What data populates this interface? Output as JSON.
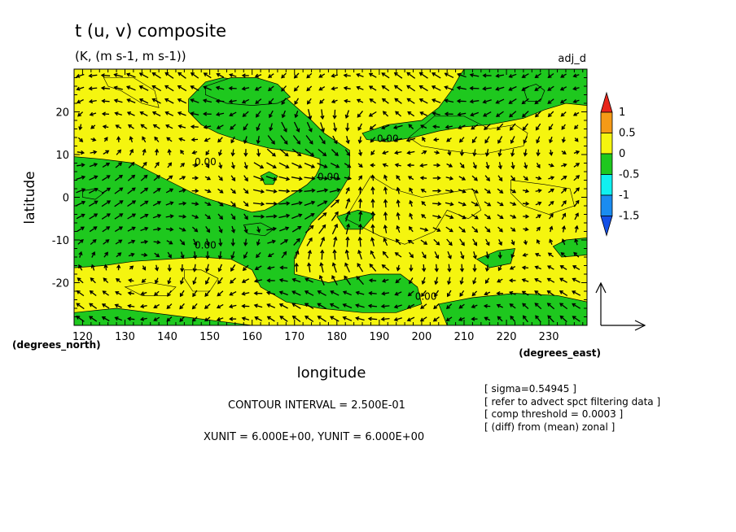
{
  "chart_data": {
    "type": "heatmap",
    "title": "t (u, v) composite",
    "subtitle": "(K, (m s-1, m s-1))",
    "top_right_label": "adj_d",
    "xlabel": "longitude",
    "ylabel": "latitude",
    "x_unit_label": "(degrees_east)",
    "y_unit_label": "(degrees_north)",
    "xlim": [
      118,
      239
    ],
    "ylim": [
      -30,
      30
    ],
    "x_ticks": [
      120,
      130,
      140,
      150,
      160,
      170,
      180,
      190,
      200,
      210,
      220,
      230
    ],
    "y_ticks": [
      20,
      10,
      0,
      -10,
      -20
    ],
    "colorbar": {
      "labels": [
        "1",
        "0.5",
        "0",
        "-0.5",
        "-1",
        "-1.5"
      ],
      "colors": [
        "#e8251a",
        "#f59a16",
        "#f5f50f",
        "#1ec81e",
        "#10f0f0",
        "#1a8cf0",
        "#1450e6"
      ]
    },
    "fill_colors": {
      "positive": "#f5f50f",
      "negative": "#1ec81e"
    },
    "contour_labels": [
      {
        "text": "0.00",
        "lon": 149,
        "lat": 7.5
      },
      {
        "text": "0.00",
        "lon": 192,
        "lat": 13
      },
      {
        "text": "0.00",
        "lon": 178,
        "lat": 4
      },
      {
        "text": "0.00",
        "lon": 149,
        "lat": -12
      },
      {
        "text": "0.00",
        "lon": 201,
        "lat": -24
      }
    ],
    "negative_regions": [
      [
        [
          118,
          9.5
        ],
        [
          124,
          9
        ],
        [
          128,
          8.5
        ],
        [
          132,
          8
        ],
        [
          136,
          6
        ],
        [
          140,
          4
        ],
        [
          146,
          1
        ],
        [
          150,
          -0.5
        ],
        [
          155,
          -2
        ],
        [
          160,
          -3.5
        ],
        [
          163,
          -3
        ],
        [
          166,
          -1.5
        ],
        [
          170,
          1
        ],
        [
          173,
          3
        ],
        [
          175,
          5
        ],
        [
          176,
          7
        ],
        [
          176,
          9
        ],
        [
          171,
          10.5
        ],
        [
          164,
          11.5
        ],
        [
          158,
          13
        ],
        [
          152,
          15
        ],
        [
          148,
          17
        ],
        [
          145,
          20
        ],
        [
          145,
          23
        ],
        [
          147,
          25
        ],
        [
          149,
          27
        ],
        [
          153,
          28
        ],
        [
          160,
          27
        ],
        [
          166,
          25
        ],
        [
          170,
          21.5
        ],
        [
          174,
          18
        ],
        [
          177,
          15
        ],
        [
          180,
          13
        ],
        [
          183,
          11
        ],
        [
          183,
          5
        ],
        [
          180,
          0
        ],
        [
          177,
          -3
        ],
        [
          174,
          -6
        ],
        [
          172,
          -10
        ],
        [
          170,
          -14
        ],
        [
          170,
          -18
        ],
        [
          178,
          -20
        ],
        [
          188,
          -18
        ],
        [
          195,
          -18
        ],
        [
          199,
          -21
        ],
        [
          200,
          -25
        ],
        [
          194,
          -27
        ],
        [
          186,
          -27
        ],
        [
          176,
          -26
        ],
        [
          168,
          -24.5
        ],
        [
          162,
          -21
        ],
        [
          160,
          -17
        ],
        [
          155,
          -14.5
        ],
        [
          148,
          -14
        ],
        [
          140,
          -14.5
        ],
        [
          132,
          -15
        ],
        [
          125,
          -16
        ],
        [
          118,
          -16.5
        ]
      ],
      [
        [
          186,
          15
        ],
        [
          192,
          17
        ],
        [
          200,
          18
        ],
        [
          204,
          21
        ],
        [
          207,
          25
        ],
        [
          209,
          28.5
        ],
        [
          210,
          30
        ],
        [
          239,
          30
        ],
        [
          239,
          21.5
        ],
        [
          234,
          22
        ],
        [
          229,
          20.5
        ],
        [
          224,
          18.5
        ],
        [
          216,
          17
        ],
        [
          210,
          16.5
        ],
        [
          204,
          15.5
        ],
        [
          198,
          14
        ],
        [
          192,
          13
        ],
        [
          187,
          13.5
        ]
      ],
      [
        [
          149,
          26
        ],
        [
          152,
          27
        ],
        [
          155,
          28
        ],
        [
          161,
          28
        ],
        [
          166,
          26.5
        ],
        [
          169,
          23.5
        ],
        [
          166,
          22
        ],
        [
          160,
          21.5
        ],
        [
          154,
          22
        ],
        [
          149,
          24
        ]
      ],
      [
        [
          162,
          5
        ],
        [
          164,
          6
        ],
        [
          166,
          5
        ],
        [
          165,
          3
        ],
        [
          163,
          3
        ]
      ],
      [
        [
          120,
          1.5
        ],
        [
          123,
          2
        ],
        [
          125,
          1
        ],
        [
          123,
          -0.5
        ],
        [
          120,
          0
        ]
      ],
      [
        [
          158,
          -6.5
        ],
        [
          162,
          -6
        ],
        [
          165,
          -7.5
        ],
        [
          163,
          -9
        ],
        [
          159,
          -8.5
        ]
      ],
      [
        [
          180,
          -4.5
        ],
        [
          185,
          -3
        ],
        [
          189,
          -4
        ],
        [
          186,
          -7.5
        ],
        [
          182,
          -7.5
        ]
      ],
      [
        [
          224,
          25.5
        ],
        [
          227,
          26.5
        ],
        [
          229,
          25
        ],
        [
          228,
          22.5
        ],
        [
          225,
          22.5
        ]
      ],
      [
        [
          213,
          -14.5
        ],
        [
          218,
          -12.5
        ],
        [
          222,
          -12
        ],
        [
          221,
          -15.5
        ],
        [
          216,
          -16.5
        ]
      ],
      [
        [
          231,
          -11.5
        ],
        [
          234,
          -10
        ],
        [
          239,
          -9.5
        ],
        [
          239,
          -13.5
        ],
        [
          233,
          -14
        ]
      ],
      [
        [
          118,
          -27
        ],
        [
          128,
          -26
        ],
        [
          140,
          -27.5
        ],
        [
          152,
          -29
        ],
        [
          160,
          -30
        ],
        [
          118,
          -30
        ]
      ],
      [
        [
          204,
          -25
        ],
        [
          212,
          -23.5
        ],
        [
          222,
          -22.5
        ],
        [
          232,
          -23
        ],
        [
          239,
          -24.5
        ],
        [
          239,
          -30
        ],
        [
          206,
          -30
        ]
      ]
    ],
    "outline_contours": [
      [
        [
          197,
          14
        ],
        [
          203,
          19
        ],
        [
          210,
          19
        ],
        [
          216,
          16
        ],
        [
          222,
          17
        ],
        [
          225,
          15
        ],
        [
          224,
          12
        ],
        [
          214,
          10
        ],
        [
          206,
          11
        ],
        [
          200,
          12
        ]
      ],
      [
        [
          130,
          -21
        ],
        [
          136,
          -20
        ],
        [
          142,
          -21
        ],
        [
          140,
          -23
        ],
        [
          134,
          -23
        ]
      ],
      [
        [
          182,
          -5
        ],
        [
          190,
          -9
        ],
        [
          196,
          -11
        ],
        [
          203,
          -8
        ],
        [
          206,
          -3
        ],
        [
          211,
          -5
        ],
        [
          214,
          -3
        ],
        [
          212,
          2
        ],
        [
          206,
          1
        ],
        [
          200,
          0
        ],
        [
          193,
          2
        ],
        [
          188,
          5
        ],
        [
          185,
          0
        ]
      ],
      [
        [
          221,
          4
        ],
        [
          229,
          3
        ],
        [
          235,
          2
        ],
        [
          236,
          -2
        ],
        [
          230,
          -4
        ],
        [
          224,
          -2
        ],
        [
          221,
          1
        ]
      ],
      [
        [
          144,
          -17
        ],
        [
          148,
          -17
        ],
        [
          152,
          -19
        ],
        [
          150,
          -22
        ],
        [
          146,
          -22
        ],
        [
          144,
          -19
        ]
      ],
      [
        [
          125,
          28
        ],
        [
          132,
          28
        ],
        [
          137,
          25
        ],
        [
          138,
          21
        ],
        [
          134,
          22
        ],
        [
          129,
          25
        ],
        [
          126,
          26
        ]
      ]
    ],
    "vector_reference_arrow": {
      "u": 6.0,
      "v": 6.0
    },
    "vector_field_grid": {
      "lon_step": 3,
      "lat_step": 3
    },
    "annotations": {
      "contour_interval": "CONTOUR INTERVAL = 2.500E-01",
      "units": "XUNIT = 6.000E+00, YUNIT = 6.000E+00",
      "notes": [
        "[ sigma=0.54945 ]",
        "[ refer to advect spct filtering data ]",
        "[ comp threshold = 0.0003 ]",
        "[ (diff) from (mean) zonal ]"
      ]
    }
  }
}
